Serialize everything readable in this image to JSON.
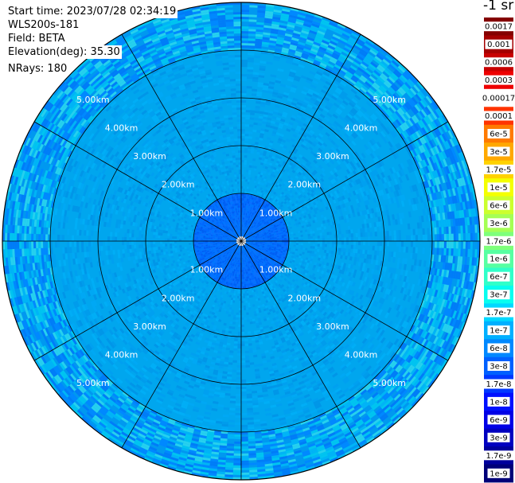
{
  "header": {
    "start_time": "Start time: 2023/07/28 02:34:19",
    "instrument": "WLS200s-181",
    "field": "Field: BETA",
    "elevation": "Elevation(deg): 35.30",
    "nrays": "NRays: 180"
  },
  "colorbar": {
    "unit": "-1 sr",
    "levels": [
      "0.0017",
      "0.001",
      "0.0006",
      "0.0003",
      "0.00017",
      "0.0001",
      "6e-5",
      "3e-5",
      "1.7e-5",
      "1e-5",
      "6e-6",
      "3e-6",
      "1.7e-6",
      "1e-6",
      "6e-7",
      "3e-7",
      "1.7e-7",
      "1e-7",
      "6e-8",
      "3e-8",
      "1.7e-8",
      "1e-8",
      "6e-9",
      "3e-9",
      "1.7e-9",
      "1e-9"
    ],
    "colors": [
      "#840000",
      "#a40000",
      "#c80000",
      "#ee0000",
      "#ffffff",
      "#ff3300",
      "#ff7a00",
      "#ffa800",
      "#ffd200",
      "#f4ff00",
      "#ccff2e",
      "#a5ff55",
      "#7eff7b",
      "#57ffa2",
      "#30ffc9",
      "#08fdef",
      "#00d8ff",
      "#00b0ff",
      "#0088ff",
      "#0060ff",
      "#0038ff",
      "#0010ff",
      "#0000e6",
      "#0000c0",
      "#00009c",
      "#000078"
    ]
  },
  "chart_data": {
    "type": "heatmap",
    "projection": "polar PPI",
    "range_rings_km": [
      1.0,
      2.0,
      3.0,
      4.0,
      5.0
    ],
    "ring_labels": [
      "1.00km",
      "2.00km",
      "3.00km",
      "4.00km",
      "5.00km"
    ],
    "spoke_angles_deg": [
      0,
      30,
      60,
      90,
      120,
      150,
      180,
      210,
      240,
      270,
      300,
      330
    ],
    "max_range_km": 5.0,
    "field": "BETA",
    "elevation_deg": 35.3,
    "nrays": 180,
    "dominant_values": {
      "near_range_0_1km": "1.7e-8",
      "mid_range_1_4km": "1e-7",
      "far_range_4_5km": "1e-7 to 1.7e-8"
    }
  }
}
